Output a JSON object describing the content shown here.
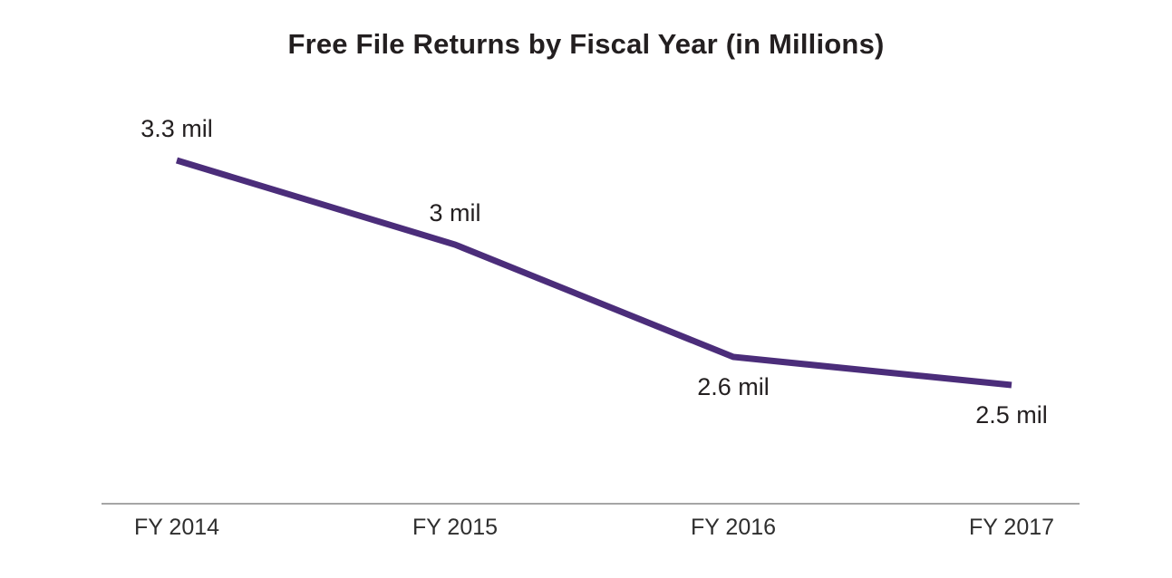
{
  "chart_data": {
    "type": "line",
    "title": "Free File Returns by Fiscal Year (in Millions)",
    "categories": [
      "FY 2014",
      "FY 2015",
      "FY 2016",
      "FY 2017"
    ],
    "values": [
      3.3,
      3.0,
      2.6,
      2.5
    ],
    "data_labels": [
      "3.3 mil",
      "3 mil",
      "2.6 mil",
      "2.5 mil"
    ],
    "label_positions": [
      "above",
      "above",
      "below",
      "below"
    ],
    "xlabel": "",
    "ylabel": "",
    "ylim": [
      2.3,
      3.4
    ],
    "grid": false,
    "legend": false,
    "colors": {
      "line": "#4b2d7a",
      "axis_line": "#a6a6a6",
      "title_text": "#231f20",
      "data_label_text": "#231f20",
      "tick_text": "#2e2e2e",
      "background": "#ffffff"
    }
  }
}
